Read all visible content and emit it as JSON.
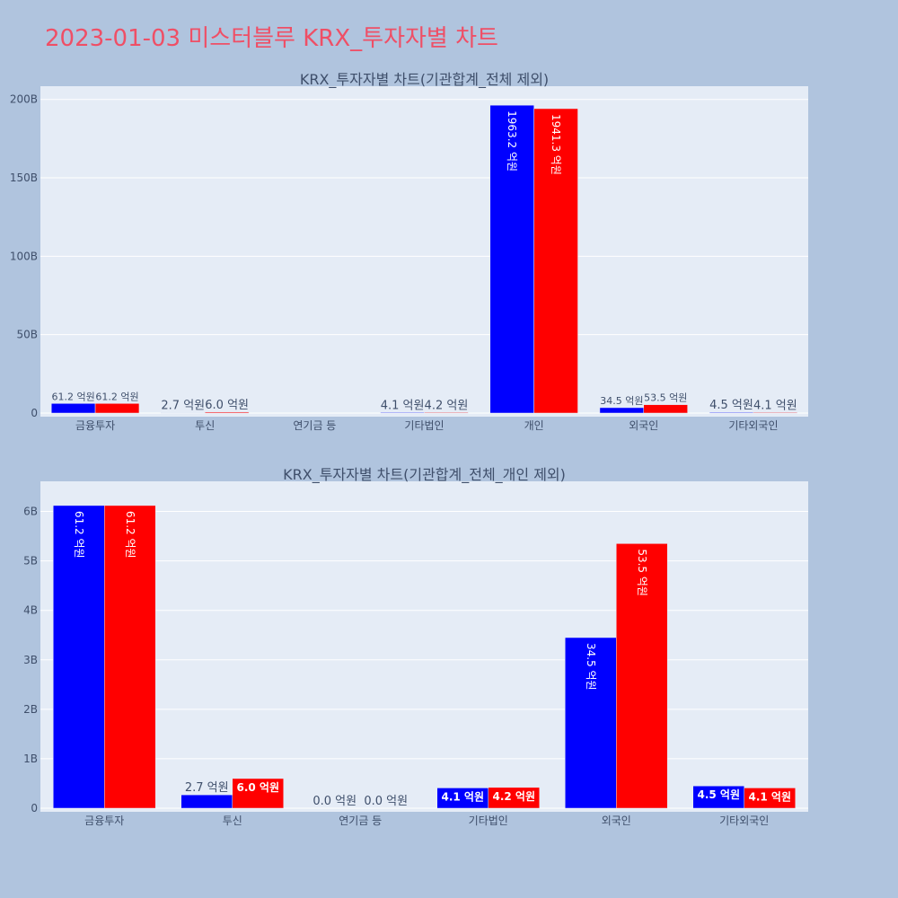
{
  "title": "2023-01-03 미스터블루 KRX_투자자별 차트",
  "colors": {
    "page_bg": "#b0c4de",
    "plot_bg": "#e5ecf6",
    "title": "#ef4f66",
    "series_a": "#0000ff",
    "series_b": "#ff0000",
    "text": "#3f4f6b"
  },
  "chart_data": [
    {
      "type": "bar",
      "title": "KRX_투자자별 차트(기관합계_전체 제외)",
      "categories": [
        "금융투자",
        "투신",
        "연기금 등",
        "기타법인",
        "개인",
        "외국인",
        "기타외국인"
      ],
      "series": [
        {
          "color": "#0000ff",
          "values": [
            6120000000,
            270000000,
            0,
            410000000,
            196320000000,
            3450000000,
            450000000
          ],
          "labels": [
            "61.2 억원",
            "2.7 억원",
            "",
            "4.1 억원",
            "1963.2 억원",
            "34.5 억원",
            "4.5 억원"
          ]
        },
        {
          "color": "#ff0000",
          "values": [
            6120000000,
            600000000,
            0,
            420000000,
            194130000000,
            5350000000,
            410000000
          ],
          "labels": [
            "61.2 억원",
            "6.0 억원",
            "",
            "4.2 억원",
            "1941.3 억원",
            "53.5 억원",
            "4.1 억원"
          ]
        }
      ],
      "ylim": [
        0,
        205000000000
      ],
      "yticks": [
        {
          "value": 0,
          "label": "0"
        },
        {
          "value": 50000000000,
          "label": "50B"
        },
        {
          "value": 100000000000,
          "label": "100B"
        },
        {
          "value": 150000000000,
          "label": "150B"
        },
        {
          "value": 200000000000,
          "label": "200B"
        }
      ],
      "grid": true,
      "legend": "none"
    },
    {
      "type": "bar",
      "title": "KRX_투자자별 차트(기관합계_전체_개인 제외)",
      "categories": [
        "금융투자",
        "투신",
        "연기금 등",
        "기타법인",
        "외국인",
        "기타외국인"
      ],
      "series": [
        {
          "color": "#0000ff",
          "values": [
            6120000000,
            270000000,
            0,
            410000000,
            3450000000,
            450000000
          ],
          "labels": [
            "61.2 억원",
            "2.7 억원",
            "0.0 억원",
            "4.1 억원",
            "34.5 억원",
            "4.5 억원"
          ]
        },
        {
          "color": "#ff0000",
          "values": [
            6120000000,
            600000000,
            0,
            420000000,
            5350000000,
            410000000
          ],
          "labels": [
            "61.2 억원",
            "6.0 억원",
            "0.0 억원",
            "4.2 억원",
            "53.5 억원",
            "4.1 억원"
          ]
        }
      ],
      "ylim": [
        0,
        6500000000
      ],
      "yticks": [
        {
          "value": 0,
          "label": "0"
        },
        {
          "value": 1000000000,
          "label": "1B"
        },
        {
          "value": 2000000000,
          "label": "2B"
        },
        {
          "value": 3000000000,
          "label": "3B"
        },
        {
          "value": 4000000000,
          "label": "4B"
        },
        {
          "value": 5000000000,
          "label": "5B"
        },
        {
          "value": 6000000000,
          "label": "6B"
        }
      ],
      "grid": true,
      "legend": "none"
    }
  ]
}
